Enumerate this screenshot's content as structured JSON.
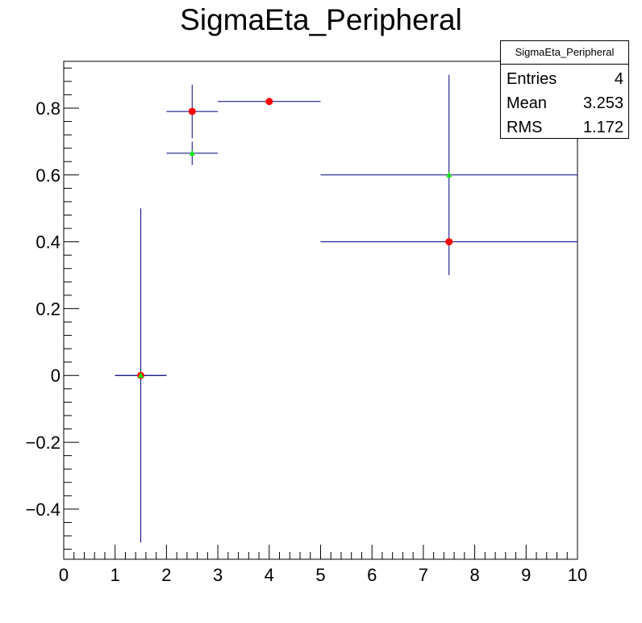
{
  "chart_data": {
    "type": "scatter",
    "title": "SigmaEta_Peripheral",
    "xlabel": "",
    "ylabel": "",
    "xlim": [
      0,
      10
    ],
    "ylim": [
      -0.55,
      0.94
    ],
    "x_ticks": [
      "0",
      "1",
      "2",
      "3",
      "4",
      "5",
      "6",
      "7",
      "8",
      "9",
      "10"
    ],
    "y_ticks": [
      "−0.4",
      "−0.2",
      "0",
      "0.2",
      "0.4",
      "0.6",
      "0.8"
    ],
    "series": [
      {
        "marker": "circle",
        "color": "#ff0000",
        "points": [
          {
            "x": 1.5,
            "y": 0.0,
            "xlow": 1,
            "xhigh": 2,
            "ylow": -0.5,
            "yhigh": 0.5
          },
          {
            "x": 2.5,
            "y": 0.79,
            "xlow": 2,
            "xhigh": 3,
            "ylow": 0.71,
            "yhigh": 0.87
          },
          {
            "x": 4.0,
            "y": 0.82,
            "xlow": 3,
            "xhigh": 5,
            "ylow": 0.82,
            "yhigh": 0.82
          },
          {
            "x": 7.5,
            "y": 0.4,
            "xlow": 5,
            "xhigh": 10,
            "ylow": 0.3,
            "yhigh": 0.9
          }
        ]
      },
      {
        "marker": "triangle",
        "color": "#00ee00",
        "points": [
          {
            "x": 1.5,
            "y": 0.0,
            "xlow": 1,
            "xhigh": 2,
            "ylow": 0.0,
            "yhigh": 0.0
          },
          {
            "x": 2.5,
            "y": 0.665,
            "xlow": 2,
            "xhigh": 3,
            "ylow": 0.63,
            "yhigh": 0.7
          },
          {
            "x": 7.5,
            "y": 0.6,
            "xlow": 5,
            "xhigh": 10,
            "ylow": 0.6,
            "yhigh": 0.6
          }
        ]
      }
    ],
    "error_bar_color": "#00007f",
    "grid": false,
    "stats_box": {
      "name": "SigmaEta_Peripheral",
      "rows": [
        {
          "label": "Entries",
          "value": "4"
        },
        {
          "label": "Mean",
          "value": "3.253"
        },
        {
          "label": "RMS",
          "value": "1.172"
        }
      ]
    }
  }
}
